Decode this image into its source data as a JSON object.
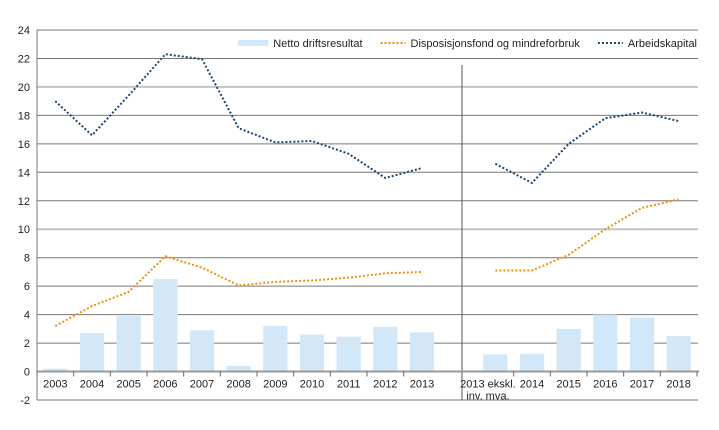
{
  "chart_data": {
    "type": "bar+line",
    "categories": [
      "2003",
      "2004",
      "2005",
      "2006",
      "2007",
      "2008",
      "2009",
      "2010",
      "2011",
      "2012",
      "2013",
      "",
      "2013 ekskl.|inv. mva.",
      "2014",
      "2015",
      "2016",
      "2017",
      "2018"
    ],
    "ylim": [
      -2,
      24
    ],
    "yticks": [
      -2,
      0,
      2,
      4,
      6,
      8,
      10,
      12,
      14,
      16,
      18,
      20,
      22,
      24
    ],
    "grid": true,
    "legend_position": "top-right",
    "series": [
      {
        "name": "Netto driftsresultat",
        "type": "bar",
        "color": "#d2e7f7",
        "values": [
          0.2,
          2.7,
          3.9,
          6.5,
          2.9,
          0.4,
          3.2,
          2.6,
          2.45,
          3.15,
          2.75,
          null,
          1.2,
          1.25,
          3.0,
          4.0,
          3.8,
          2.5
        ]
      },
      {
        "name": "Disposisjonsfond og mindreforbruk",
        "type": "line",
        "style": "dotted",
        "color": "#f0900f",
        "values": [
          3.2,
          4.6,
          5.6,
          8.1,
          7.3,
          6.05,
          6.3,
          6.4,
          6.6,
          6.9,
          7.0,
          null,
          7.1,
          7.1,
          8.2,
          10.0,
          11.5,
          12.1
        ]
      },
      {
        "name": "Arbeidskapital",
        "type": "line",
        "style": "dotted",
        "color": "#1d4670",
        "values": [
          19.0,
          16.6,
          19.4,
          22.3,
          21.95,
          17.1,
          16.1,
          16.2,
          15.3,
          13.6,
          14.3,
          null,
          14.6,
          13.25,
          16.0,
          17.8,
          18.2,
          17.6
        ]
      }
    ]
  }
}
